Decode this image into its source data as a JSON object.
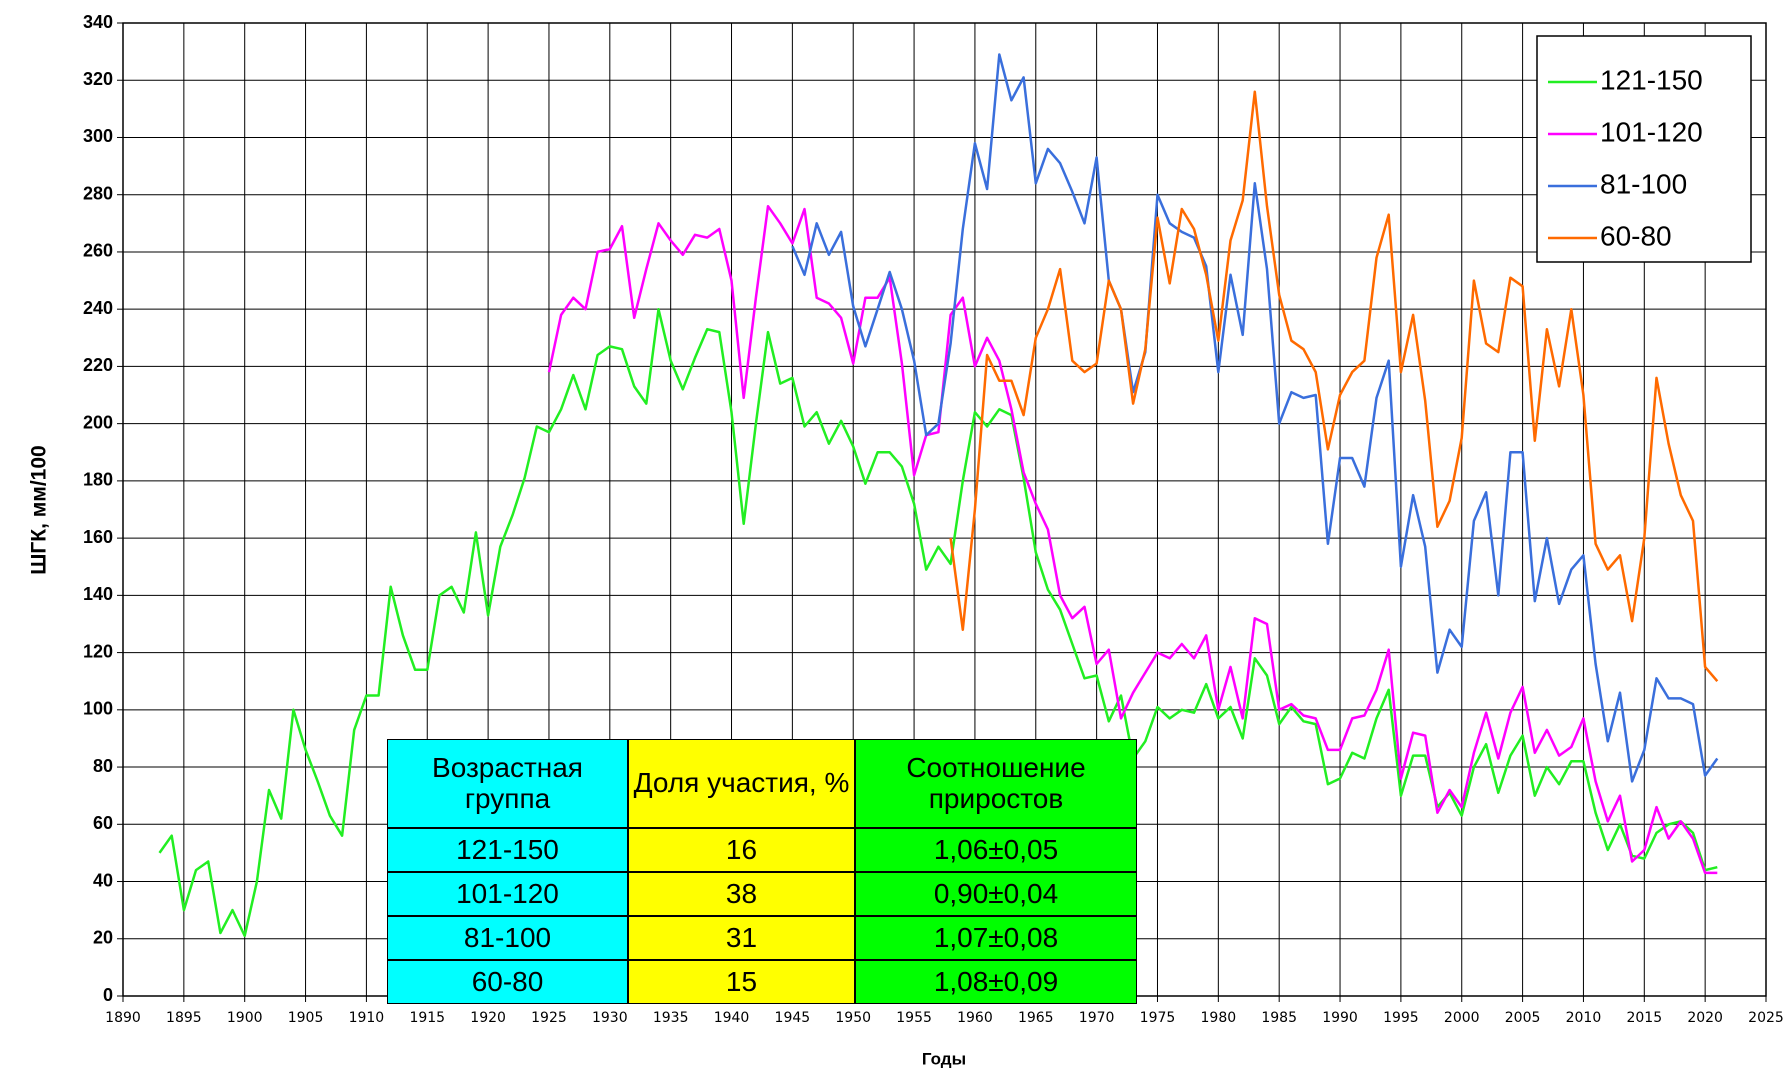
{
  "chart_data": {
    "type": "line",
    "ylabel": "ШГК, мм/100",
    "xlabel": "Годы",
    "xlim": [
      1890,
      2025
    ],
    "ylim": [
      0,
      340
    ],
    "xticks": [
      1890,
      1895,
      1900,
      1905,
      1910,
      1915,
      1920,
      1925,
      1930,
      1935,
      1940,
      1945,
      1950,
      1955,
      1960,
      1965,
      1970,
      1975,
      1980,
      1985,
      1990,
      1995,
      2000,
      2005,
      2010,
      2015,
      2020,
      2025
    ],
    "yticks": [
      0,
      20,
      40,
      60,
      80,
      100,
      120,
      140,
      160,
      180,
      200,
      220,
      240,
      260,
      280,
      300,
      320,
      340
    ],
    "grid": true,
    "legend": "upper right",
    "x": [
      1893,
      1894,
      1895,
      1896,
      1897,
      1898,
      1899,
      1900,
      1901,
      1902,
      1903,
      1904,
      1905,
      1906,
      1907,
      1908,
      1909,
      1910,
      1911,
      1912,
      1913,
      1914,
      1915,
      1916,
      1917,
      1918,
      1919,
      1920,
      1921,
      1922,
      1923,
      1924,
      1925,
      1926,
      1927,
      1928,
      1929,
      1930,
      1931,
      1932,
      1933,
      1934,
      1935,
      1936,
      1937,
      1938,
      1939,
      1940,
      1941,
      1942,
      1943,
      1944,
      1945,
      1946,
      1947,
      1948,
      1949,
      1950,
      1951,
      1952,
      1953,
      1954,
      1955,
      1956,
      1957,
      1958,
      1959,
      1960,
      1961,
      1962,
      1963,
      1964,
      1965,
      1966,
      1967,
      1968,
      1969,
      1970,
      1971,
      1972,
      1973,
      1974,
      1975,
      1976,
      1977,
      1978,
      1979,
      1980,
      1981,
      1982,
      1983,
      1984,
      1985,
      1986,
      1987,
      1988,
      1989,
      1990,
      1991,
      1992,
      1993,
      1994,
      1995,
      1996,
      1997,
      1998,
      1999,
      2000,
      2001,
      2002,
      2003,
      2004,
      2005,
      2006,
      2007,
      2008,
      2009,
      2010,
      2011,
      2012,
      2013,
      2014,
      2015,
      2016,
      2017,
      2018,
      2019,
      2020,
      2021
    ],
    "series": [
      {
        "name": "121-150",
        "color": "#22ee22",
        "values": [
          50,
          56,
          30,
          44,
          47,
          22,
          30,
          21,
          40,
          72,
          62,
          100,
          86,
          75,
          63,
          56,
          93,
          105,
          105,
          143,
          126,
          114,
          114,
          140,
          143,
          134,
          162,
          133,
          157,
          168,
          181,
          199,
          197,
          205,
          217,
          205,
          224,
          227,
          226,
          213,
          207,
          240,
          222,
          212,
          223,
          233,
          232,
          204,
          165,
          200,
          232,
          214,
          216,
          199,
          204,
          193,
          201,
          192,
          179,
          190,
          190,
          185,
          172,
          149,
          157,
          151,
          180,
          204,
          199,
          205,
          203,
          181,
          155,
          142,
          135,
          123,
          111,
          112,
          96,
          105,
          83,
          89,
          101,
          97,
          100,
          99,
          109,
          97,
          101,
          90,
          118,
          112,
          95,
          101,
          96,
          95,
          74,
          76,
          85,
          83,
          97,
          107,
          70,
          84,
          84,
          66,
          71,
          63,
          80,
          88,
          71,
          84,
          91,
          70,
          80,
          74,
          82,
          82,
          64,
          51,
          60,
          49,
          48,
          57,
          60,
          61,
          57,
          44,
          45
        ]
      },
      {
        "name": "101-120",
        "color": "#ff00ff",
        "values": [
          null,
          null,
          null,
          null,
          null,
          null,
          null,
          null,
          null,
          null,
          null,
          null,
          null,
          null,
          null,
          null,
          null,
          null,
          null,
          null,
          null,
          null,
          null,
          null,
          null,
          null,
          null,
          null,
          null,
          null,
          null,
          null,
          218,
          238,
          244,
          240,
          260,
          261,
          269,
          237,
          254,
          270,
          264,
          259,
          266,
          265,
          268,
          250,
          209,
          244,
          276,
          270,
          263,
          275,
          244,
          242,
          237,
          221,
          244,
          244,
          251,
          221,
          182,
          196,
          197,
          238,
          244,
          220,
          230,
          222,
          205,
          183,
          172,
          163,
          140,
          132,
          136,
          116,
          121,
          97,
          106,
          113,
          120,
          118,
          123,
          118,
          126,
          100,
          115,
          97,
          132,
          130,
          100,
          102,
          98,
          97,
          86,
          86,
          97,
          98,
          107,
          121,
          76,
          92,
          91,
          64,
          72,
          66,
          85,
          99,
          83,
          99,
          108,
          85,
          93,
          84,
          87,
          97,
          75,
          61,
          70,
          47,
          51,
          66,
          55,
          61,
          55,
          43,
          43
        ]
      },
      {
        "name": "81-100",
        "color": "#3a6fdc",
        "values": [
          null,
          null,
          null,
          null,
          null,
          null,
          null,
          null,
          null,
          null,
          null,
          null,
          null,
          null,
          null,
          null,
          null,
          null,
          null,
          null,
          null,
          null,
          null,
          null,
          null,
          null,
          null,
          null,
          null,
          null,
          null,
          null,
          null,
          null,
          null,
          null,
          null,
          null,
          null,
          null,
          null,
          null,
          null,
          null,
          null,
          null,
          null,
          null,
          null,
          null,
          null,
          null,
          262,
          252,
          270,
          259,
          267,
          241,
          227,
          240,
          253,
          240,
          222,
          196,
          200,
          228,
          268,
          298,
          282,
          329,
          313,
          321,
          284,
          296,
          291,
          281,
          270,
          293,
          250,
          240,
          211,
          225,
          280,
          270,
          267,
          265,
          255,
          218,
          252,
          231,
          284,
          254,
          200,
          211,
          209,
          210,
          158,
          188,
          188,
          178,
          209,
          222,
          150,
          175,
          157,
          113,
          128,
          122,
          166,
          176,
          140,
          190,
          190,
          138,
          160,
          137,
          149,
          154,
          116,
          89,
          106,
          75,
          86,
          111,
          104,
          104,
          102,
          77,
          83
        ]
      },
      {
        "name": "60-80",
        "color": "#ff6a00",
        "values": [
          null,
          null,
          null,
          null,
          null,
          null,
          null,
          null,
          null,
          null,
          null,
          null,
          null,
          null,
          null,
          null,
          null,
          null,
          null,
          null,
          null,
          null,
          null,
          null,
          null,
          null,
          null,
          null,
          null,
          null,
          null,
          null,
          null,
          null,
          null,
          null,
          null,
          null,
          null,
          null,
          null,
          null,
          null,
          null,
          null,
          null,
          null,
          null,
          null,
          null,
          null,
          null,
          null,
          null,
          null,
          null,
          null,
          null,
          null,
          null,
          null,
          null,
          null,
          null,
          null,
          160,
          128,
          170,
          224,
          215,
          215,
          203,
          230,
          240,
          254,
          222,
          218,
          221,
          250,
          240,
          207,
          226,
          272,
          249,
          275,
          268,
          252,
          229,
          264,
          278,
          316,
          276,
          245,
          229,
          226,
          218,
          191,
          210,
          218,
          222,
          258,
          273,
          218,
          238,
          208,
          164,
          173,
          195,
          250,
          228,
          225,
          251,
          248,
          194,
          233,
          213,
          240,
          210,
          158,
          149,
          154,
          131,
          160,
          216,
          193,
          175,
          166,
          115,
          110
        ]
      }
    ]
  },
  "table": {
    "headers": [
      "Возрастная группа",
      "Доля участия, %",
      "Соотношение приростов"
    ],
    "rows": [
      [
        "121-150",
        "16",
        "1,06±0,05"
      ],
      [
        "101-120",
        "38",
        "0,90±0,04"
      ],
      [
        "81-100",
        "31",
        "1,07±0,08"
      ],
      [
        "60-80",
        "15",
        "1,08±0,09"
      ]
    ]
  }
}
